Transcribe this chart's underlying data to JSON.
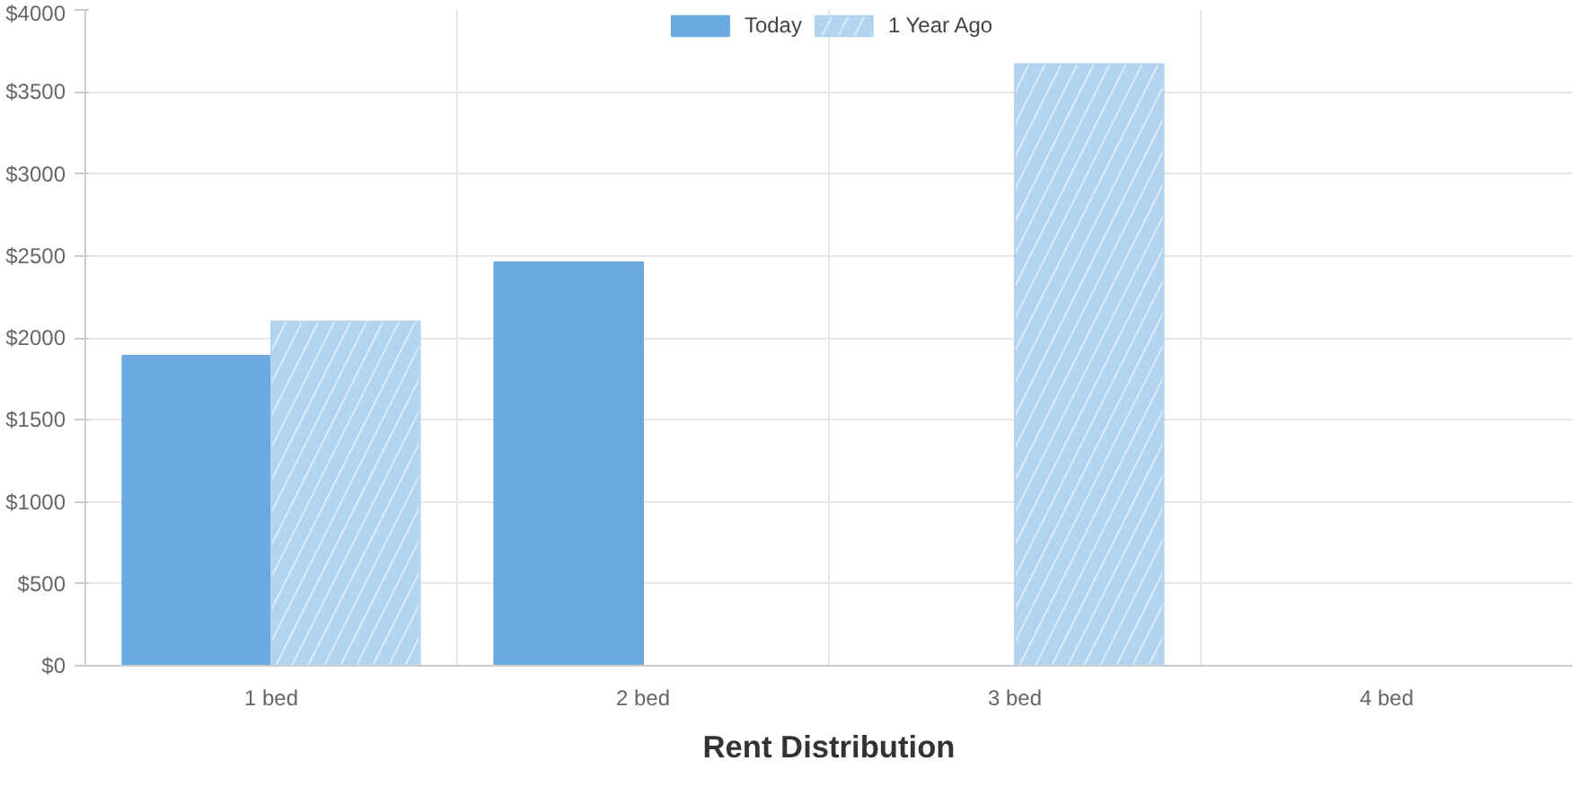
{
  "chart_data": {
    "type": "bar",
    "title": "Rent Distribution",
    "categories": [
      "1 bed",
      "2 bed",
      "3 bed",
      "4 bed"
    ],
    "series": [
      {
        "name": "Today",
        "color": "#6aaade",
        "values": [
          1890,
          2460,
          null,
          null
        ]
      },
      {
        "name": "1 Year Ago",
        "color": "#b3d4f0",
        "values": [
          2100,
          null,
          3670,
          null
        ]
      }
    ],
    "ylim": [
      0,
      4000
    ],
    "yticks": [
      {
        "value": 0,
        "label": "$0"
      },
      {
        "value": 500,
        "label": "$500"
      },
      {
        "value": 1000,
        "label": "$1000"
      },
      {
        "value": 1500,
        "label": "$1500"
      },
      {
        "value": 2000,
        "label": "$2000"
      },
      {
        "value": 2500,
        "label": "$2500"
      },
      {
        "value": 3000,
        "label": "$3000"
      },
      {
        "value": 3500,
        "label": "$3500"
      },
      {
        "value": 4000,
        "label": "$4000"
      }
    ],
    "grid": true,
    "legend": "top"
  }
}
